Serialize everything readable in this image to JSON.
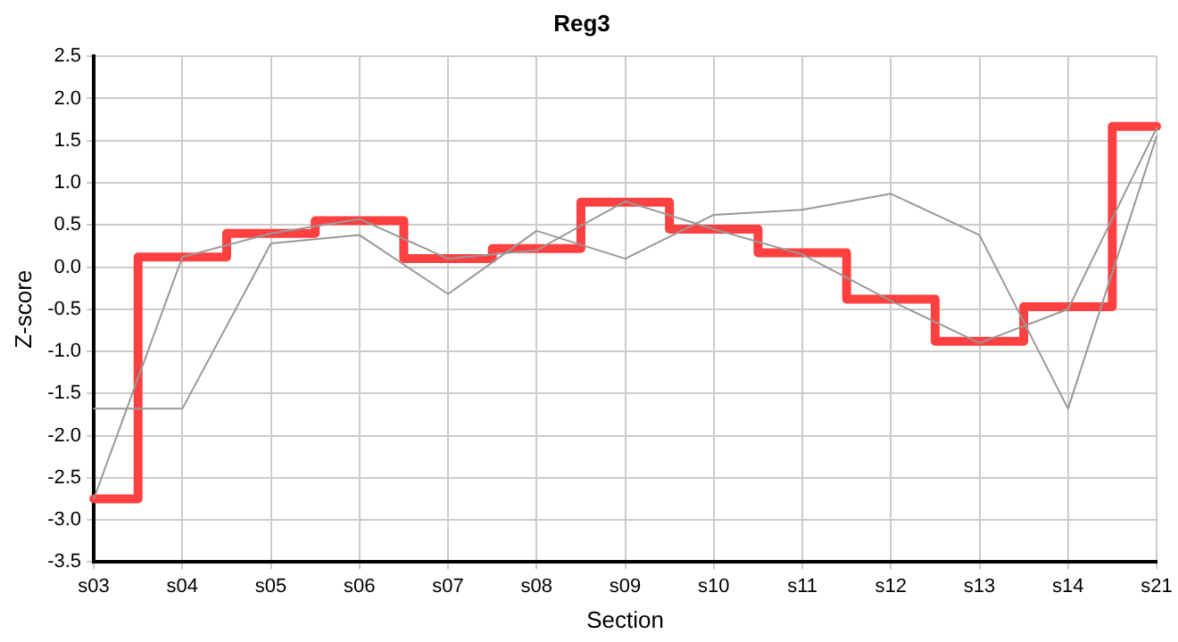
{
  "chart_data": {
    "type": "line",
    "title": "Reg3",
    "xlabel": "Section",
    "ylabel": "Z-score",
    "categories": [
      "s03",
      "s04",
      "s05",
      "s06",
      "s07",
      "s08",
      "s09",
      "s10",
      "s11",
      "s12",
      "s13",
      "s14",
      "s21"
    ],
    "series": [
      {
        "color": "#999999",
        "values": [
          -1.68,
          -1.68,
          0.28,
          0.38,
          -0.32,
          0.43,
          0.1,
          0.62,
          0.68,
          0.87,
          0.38,
          -1.68,
          1.55
        ]
      },
      {
        "color": "#999999",
        "values": [
          -2.75,
          0.12,
          0.4,
          0.57,
          0.1,
          0.2,
          0.78,
          0.45,
          0.15,
          -0.4,
          -0.9,
          -0.5,
          1.65
        ]
      },
      {
        "type": "step",
        "color": "#ff4040",
        "values": [
          -2.75,
          0.12,
          0.4,
          0.55,
          0.1,
          0.22,
          0.77,
          0.45,
          0.17,
          -0.38,
          -0.88,
          -0.47,
          1.67
        ]
      }
    ],
    "ylim": [
      -3.5,
      2.5
    ],
    "yticks": [
      {
        "value": -3.5,
        "label": "-3.5"
      },
      {
        "value": -3,
        "label": "-3.0"
      },
      {
        "value": -2.5,
        "label": "-2.5"
      },
      {
        "value": -2,
        "label": "-2.0"
      },
      {
        "value": -1.5,
        "label": "-1.5"
      },
      {
        "value": -1,
        "label": "-1.0"
      },
      {
        "value": -0.5,
        "label": "-0.5"
      },
      {
        "value": 0,
        "label": "0.0"
      },
      {
        "value": 0.5,
        "label": "0.5"
      },
      {
        "value": 1,
        "label": "1.0"
      },
      {
        "value": 1.5,
        "label": "1.5"
      },
      {
        "value": 2,
        "label": "2.0"
      },
      {
        "value": 2.5,
        "label": "2.5"
      }
    ],
    "grid": true,
    "legend": false
  }
}
